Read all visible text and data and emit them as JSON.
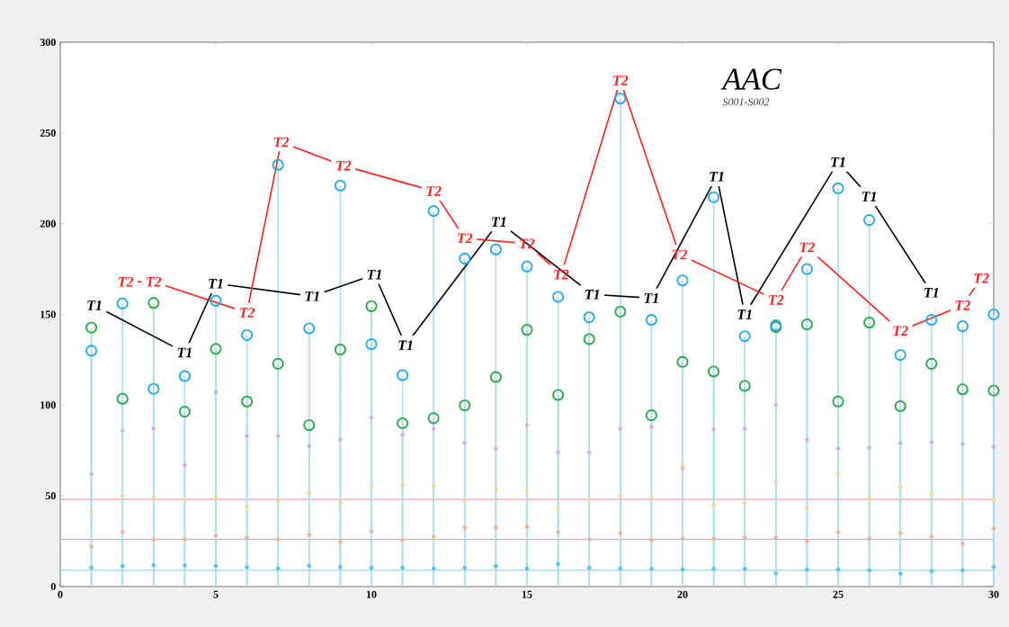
{
  "chart_data": {
    "type": "lollipop",
    "title": "AAC",
    "subtitle": "S001-S002",
    "x": [
      1,
      2,
      3,
      4,
      5,
      6,
      7,
      8,
      9,
      10,
      11,
      12,
      13,
      14,
      15,
      16,
      17,
      18,
      19,
      20,
      21,
      22,
      23,
      24,
      25,
      26,
      27,
      28,
      29,
      30
    ],
    "xlim": [
      0,
      30
    ],
    "ylim": [
      0,
      300
    ],
    "xticks": [
      0,
      5,
      10,
      15,
      20,
      25,
      30
    ],
    "yticks": [
      0,
      50,
      100,
      150,
      200,
      250,
      300
    ],
    "grid": false,
    "marker": "circle",
    "ref_lines": [
      {
        "axis": "y",
        "value": 48,
        "color": "#e3a4ab"
      },
      {
        "axis": "y",
        "value": 26,
        "color": "#e3a4ab"
      },
      {
        "axis": "y",
        "value": 9,
        "color": "#8fd8f2"
      }
    ],
    "series": [
      {
        "type": "scatter",
        "color": "#cbb5e3",
        "values": [
          62,
          86,
          87,
          67,
          107,
          83,
          83,
          77.5,
          81,
          93,
          83.5,
          87,
          79,
          76,
          89,
          74,
          74,
          87,
          88,
          65,
          86.5,
          87,
          100,
          81,
          76,
          76.5,
          79,
          79.5,
          78.5,
          77
        ]
      },
      {
        "type": "scatter",
        "color": "#e6dd9c",
        "values": [
          41,
          50,
          49,
          48,
          49,
          44,
          47,
          51.5,
          46,
          55,
          56,
          55.5,
          47,
          53.5,
          53,
          43,
          48,
          50,
          49,
          67,
          45,
          46,
          57.5,
          43,
          62,
          48.5,
          55,
          51,
          48.5,
          48
        ]
      },
      {
        "type": "scatter",
        "color": "#eeb49c",
        "values": [
          22,
          30,
          26,
          26,
          28,
          27,
          26,
          28.5,
          24.5,
          30.5,
          25.5,
          27.5,
          32.5,
          32.5,
          33,
          30,
          26,
          29.5,
          25.5,
          26.5,
          26.5,
          27,
          27,
          25,
          30,
          26.5,
          29.5,
          27.5,
          23.5,
          32
        ]
      },
      {
        "type": "scatter",
        "color": "#5fc0ea",
        "values": [
          10.3,
          11.2,
          11.8,
          11.6,
          11.4,
          10.6,
          10,
          11.4,
          10.8,
          10.3,
          10.3,
          10,
          10.3,
          11.2,
          10,
          12.4,
          10.3,
          10,
          9.8,
          9.4,
          9.8,
          9.8,
          7.3,
          9.3,
          9.3,
          8.9,
          7.1,
          8.5,
          8.9,
          10.8
        ]
      },
      {
        "color": "#2aa84a",
        "values": [
          142.7,
          103.5,
          156.3,
          96.4,
          131,
          102,
          122.8,
          89,
          130.6,
          154.5,
          90,
          92.8,
          99.8,
          115.5,
          141.5,
          105.6,
          136.4,
          151.5,
          94.4,
          123.8,
          118.5,
          110.6,
          143,
          144.5,
          102,
          145.5,
          99.4,
          122.8,
          108.7,
          108
        ]
      },
      {
        "color": "#27a9e6",
        "values": [
          130,
          156,
          109,
          116,
          157.5,
          138.6,
          232.4,
          142.3,
          221,
          133.6,
          116.5,
          207,
          180.8,
          185.8,
          176.4,
          159.7,
          148.4,
          269,
          147,
          168.7,
          214.6,
          138,
          144,
          175,
          219.5,
          202,
          127.6,
          147,
          143.5,
          150
        ]
      },
      {
        "type": "line",
        "marker": "none",
        "color": "#000000",
        "x": [
          1.1,
          4.0,
          5.0,
          8.1,
          10.1,
          11.1,
          14.1,
          17.1,
          19.0,
          21.1,
          22.0,
          25.0,
          26.0,
          28.0
        ],
        "values": [
          155,
          129,
          167,
          160,
          172,
          133,
          201,
          161,
          159,
          226,
          150,
          234,
          215,
          162
        ],
        "value_labels": [
          "T1",
          "T1",
          "T1",
          "T1",
          "T1",
          "T1",
          "T1",
          "T1",
          "T1",
          "T1",
          "T1",
          "T1",
          "T1",
          "T1"
        ]
      },
      {
        "type": "line",
        "marker": "none",
        "color": "#ff2020",
        "x": [
          2.1,
          3.0,
          6.0,
          7.1,
          9.1,
          12.0,
          13.0,
          15.0,
          16.1,
          18.0,
          19.9,
          23.0,
          24.0,
          27.0,
          29.0,
          29.6
        ],
        "values": [
          168,
          168,
          151,
          245,
          232,
          218,
          192,
          189,
          172,
          279,
          183,
          158,
          187,
          141,
          155,
          170
        ],
        "value_labels": [
          "T2",
          "T2",
          "T2",
          "T2",
          "T2",
          "T2",
          "T2",
          "T2",
          "T2",
          "T2",
          "T2",
          "T2",
          "T2",
          "T2",
          "T2",
          "T2"
        ]
      }
    ]
  }
}
